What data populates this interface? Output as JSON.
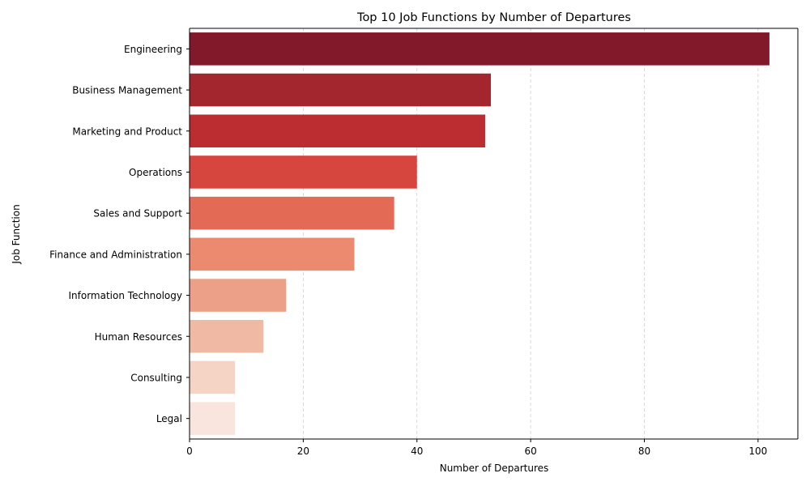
{
  "chart_data": {
    "type": "bar",
    "orientation": "horizontal",
    "title": "Top 10 Job Functions by Number of Departures",
    "xlabel": "Number of Departures",
    "ylabel": "Job Function",
    "categories": [
      "Engineering",
      "Business Management",
      "Marketing and Product",
      "Operations",
      "Sales and Support",
      "Finance and Administration",
      "Information Technology",
      "Human Resources",
      "Consulting",
      "Legal"
    ],
    "values": [
      102,
      53,
      52,
      40,
      36,
      29,
      17,
      13,
      8,
      8
    ],
    "xlim": [
      0,
      107
    ],
    "xticks": [
      0,
      20,
      40,
      60,
      80,
      100
    ],
    "grid": "x-axis dashed",
    "colors": [
      "#82192a",
      "#a3262e",
      "#bb2d31",
      "#d6463e",
      "#e36b56",
      "#eb8a6f",
      "#eca088",
      "#f0b9a4",
      "#f5d4c6",
      "#f9e5dd"
    ]
  }
}
